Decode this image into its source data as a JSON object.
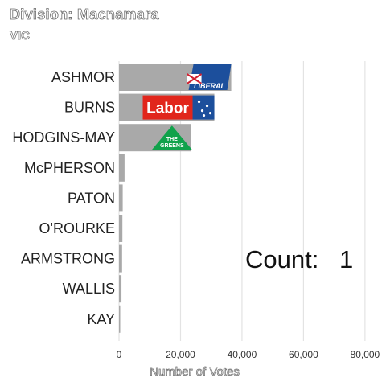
{
  "header": {
    "title": "Division: Macnamara",
    "subtitle": "VIC"
  },
  "counter": {
    "label": "Count:",
    "value": "1"
  },
  "colors": {
    "bar": "#a9a9a9",
    "grid": "#e3e3e3",
    "liberal": "#1c4f9c",
    "labor": "#e1261c",
    "greens": "#10a24b"
  },
  "chart_data": {
    "type": "bar",
    "orientation": "horizontal",
    "title": "Division: Macnamara",
    "subtitle": "VIC",
    "xlabel": "Number of Votes",
    "ylabel": "",
    "xlim": [
      0,
      85000
    ],
    "xticks": [
      0,
      20000,
      40000,
      60000,
      80000
    ],
    "xtick_labels": [
      "0",
      "20,000",
      "40,000",
      "60,000",
      "80,000"
    ],
    "grid": true,
    "categories": [
      "ASHMOR",
      "BURNS",
      "HODGINS-MAY",
      "McPHERSON",
      "PATON",
      "O'ROURKE",
      "ARMSTRONG",
      "WALLIS",
      "KAY"
    ],
    "values": [
      36500,
      31000,
      23500,
      1800,
      1200,
      1100,
      1000,
      800,
      300
    ],
    "bar_color": "#a9a9a9",
    "party_logos": [
      {
        "category": "ASHMOR",
        "party": "Liberal",
        "text": "LIBERAL"
      },
      {
        "category": "BURNS",
        "party": "Labor",
        "text": "Labor"
      },
      {
        "category": "HODGINS-MAY",
        "party": "Greens",
        "text_top": "THE",
        "text_bottom": "GREENS"
      }
    ]
  }
}
